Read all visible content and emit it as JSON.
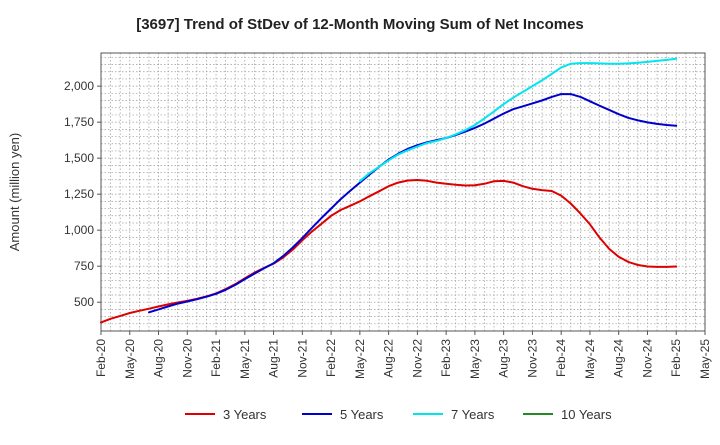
{
  "chart_data": {
    "type": "line",
    "title": "[3697]  Trend of StDev of 12-Month Moving Sum of Net Incomes",
    "ylabel": "Amount (million yen)",
    "xlabel": "",
    "ylim": [
      300,
      2230
    ],
    "yticks": [
      "500",
      "750",
      "1,000",
      "1,250",
      "1,500",
      "1,750",
      "2,000"
    ],
    "ytick_values": [
      500,
      750,
      1000,
      1250,
      1500,
      1750,
      2000
    ],
    "xticks": [
      "Feb-20",
      "May-20",
      "Aug-20",
      "Nov-20",
      "Feb-21",
      "May-21",
      "Aug-21",
      "Nov-21",
      "Feb-22",
      "May-22",
      "Aug-22",
      "Nov-22",
      "Feb-23",
      "May-23",
      "Aug-23",
      "Nov-23",
      "Feb-24",
      "May-24",
      "Aug-24",
      "Nov-24",
      "Feb-25",
      "May-25"
    ],
    "grid": true,
    "legend_position": "bottom",
    "series": [
      {
        "name": "3 Years",
        "color": "#dd0000",
        "x": [
          0,
          0.33,
          0.67,
          1,
          1.33,
          1.67,
          2,
          2.33,
          2.67,
          3,
          3.33,
          3.67,
          4,
          4.33,
          4.67,
          5,
          5.33,
          5.67,
          6,
          6.33,
          6.67,
          7,
          7.33,
          7.67,
          8,
          8.33,
          8.67,
          9,
          9.33,
          9.67,
          10,
          10.33,
          10.67,
          11,
          11.33,
          11.67,
          12,
          12.33,
          12.67,
          13,
          13.33,
          13.67,
          14,
          14.33,
          14.67,
          15,
          15.33,
          15.67,
          16,
          16.33,
          16.67,
          17,
          17.33,
          17.67,
          18,
          18.33,
          18.67,
          19,
          19.33,
          19.67,
          20
        ],
        "values": [
          360,
          385,
          405,
          425,
          440,
          455,
          470,
          485,
          498,
          510,
          523,
          540,
          560,
          590,
          625,
          665,
          705,
          738,
          768,
          810,
          865,
          930,
          990,
          1045,
          1100,
          1140,
          1170,
          1200,
          1235,
          1270,
          1305,
          1330,
          1345,
          1348,
          1343,
          1330,
          1322,
          1315,
          1310,
          1312,
          1322,
          1340,
          1342,
          1330,
          1305,
          1287,
          1278,
          1272,
          1240,
          1185,
          1115,
          1040,
          950,
          870,
          815,
          780,
          758,
          748,
          745,
          745,
          748
        ]
      },
      {
        "name": "5 Years",
        "color": "#0000cc",
        "x": [
          1.67,
          2,
          2.33,
          2.67,
          3,
          3.33,
          3.67,
          4,
          4.33,
          4.67,
          5,
          5.33,
          5.67,
          6,
          6.33,
          6.67,
          7,
          7.33,
          7.67,
          8,
          8.33,
          8.67,
          9,
          9.33,
          9.67,
          10,
          10.33,
          10.67,
          11,
          11.33,
          11.67,
          12,
          12.33,
          12.67,
          13,
          13.33,
          13.67,
          14,
          14.33,
          14.67,
          15,
          15.33,
          15.67,
          16,
          16.33,
          16.67,
          17,
          17.33,
          17.67,
          18,
          18.33,
          18.67,
          19,
          19.33,
          19.67,
          20
        ],
        "values": [
          430,
          450,
          470,
          490,
          505,
          520,
          538,
          558,
          585,
          620,
          660,
          698,
          735,
          770,
          820,
          880,
          945,
          1015,
          1085,
          1150,
          1215,
          1275,
          1330,
          1385,
          1440,
          1490,
          1530,
          1565,
          1590,
          1610,
          1625,
          1640,
          1660,
          1685,
          1710,
          1740,
          1775,
          1810,
          1840,
          1860,
          1880,
          1900,
          1925,
          1945,
          1945,
          1925,
          1895,
          1865,
          1835,
          1805,
          1780,
          1762,
          1748,
          1738,
          1730,
          1725
        ]
      },
      {
        "name": "7 Years",
        "color": "#00e5ee",
        "x": [
          9,
          9.33,
          9.67,
          10,
          10.33,
          10.67,
          11,
          11.33,
          11.67,
          12,
          12.33,
          12.67,
          13,
          13.33,
          13.67,
          14,
          14.33,
          14.67,
          15,
          15.33,
          15.67,
          16,
          16.33,
          16.67,
          17,
          17.33,
          17.67,
          18,
          18.33,
          18.67,
          19,
          19.33,
          19.67,
          20
        ],
        "values": [
          1340,
          1395,
          1440,
          1485,
          1525,
          1555,
          1580,
          1605,
          1620,
          1640,
          1665,
          1695,
          1730,
          1775,
          1825,
          1875,
          1920,
          1960,
          2000,
          2040,
          2085,
          2130,
          2155,
          2160,
          2160,
          2158,
          2155,
          2155,
          2158,
          2162,
          2168,
          2175,
          2182,
          2190
        ]
      },
      {
        "name": "10 Years",
        "color": "#228b22",
        "x": [],
        "values": []
      }
    ]
  }
}
